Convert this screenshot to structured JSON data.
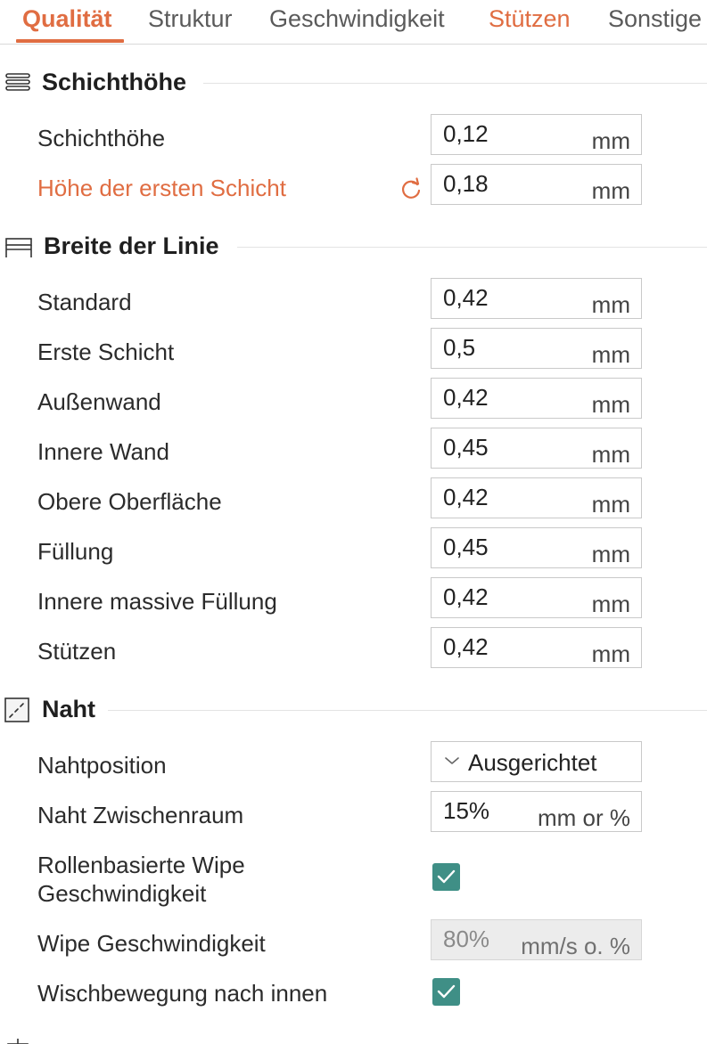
{
  "tabs": [
    {
      "label": "Qualität",
      "state": "active"
    },
    {
      "label": "Struktur",
      "state": "normal"
    },
    {
      "label": "Geschwindigkeit",
      "state": "normal"
    },
    {
      "label": "Stützen",
      "state": "modified"
    },
    {
      "label": "Sonstige",
      "state": "normal"
    }
  ],
  "colors": {
    "accent": "#e06d42",
    "checkbox": "#3f8f86"
  },
  "sections": {
    "layer_height": {
      "title": "Schichthöhe",
      "icon": "layers-icon",
      "rows": [
        {
          "label": "Schichthöhe",
          "value": "0,12",
          "unit": "mm"
        },
        {
          "label": "Höhe der ersten Schicht",
          "value": "0,18",
          "unit": "mm",
          "modified": true
        }
      ]
    },
    "line_width": {
      "title": "Breite der Linie",
      "icon": "line-width-icon",
      "rows": [
        {
          "label": "Standard",
          "value": "0,42",
          "unit": "mm"
        },
        {
          "label": "Erste Schicht",
          "value": "0,5",
          "unit": "mm"
        },
        {
          "label": "Außenwand",
          "value": "0,42",
          "unit": "mm"
        },
        {
          "label": "Innere Wand",
          "value": "0,45",
          "unit": "mm"
        },
        {
          "label": "Obere Oberfläche",
          "value": "0,42",
          "unit": "mm"
        },
        {
          "label": "Füllung",
          "value": "0,45",
          "unit": "mm"
        },
        {
          "label": "Innere massive Füllung",
          "value": "0,42",
          "unit": "mm"
        },
        {
          "label": "Stützen",
          "value": "0,42",
          "unit": "mm"
        }
      ]
    },
    "seam": {
      "title": "Naht",
      "icon": "seam-icon",
      "seam_position": {
        "label": "Nahtposition",
        "value": "Ausgerichtet"
      },
      "seam_gap": {
        "label": "Naht Zwischenraum",
        "value": "15%",
        "unit": "mm or %"
      },
      "role_wipe": {
        "label_line1": "Rollenbasierte Wipe",
        "label_line2": "Geschwindigkeit",
        "checked": true
      },
      "wipe_speed": {
        "label": "Wipe Geschwindigkeit",
        "value": "80%",
        "unit": "mm/s o. %",
        "disabled": true
      },
      "wipe_inward": {
        "label": "Wischbewegung nach innen",
        "checked": true
      }
    }
  }
}
